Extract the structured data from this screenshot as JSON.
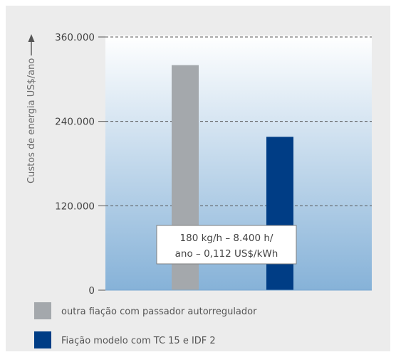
{
  "chart_data": {
    "type": "bar",
    "ylabel": "Custos de energia US$/ano",
    "ylim": [
      0,
      360000
    ],
    "yticks": [
      0,
      120000,
      240000,
      360000
    ],
    "ytick_labels": [
      "0",
      "120.000",
      "240.000",
      "360.000"
    ],
    "grid": true,
    "categories": [
      "outra fiação com passador autorregulador",
      "Fiação modelo com TC 15 e IDF 2"
    ],
    "values": [
      320000,
      218000
    ],
    "colors": [
      "#a4a8ac",
      "#003d85"
    ],
    "annotation": [
      "180 kg/h – 8.400 h/",
      "ano – 0,112 US$/kWh"
    ],
    "legend_position": "bottom"
  }
}
